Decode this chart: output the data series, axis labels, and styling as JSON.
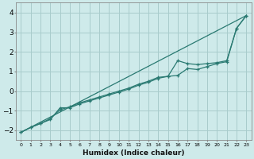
{
  "xlabel": "Humidex (Indice chaleur)",
  "xlim": [
    -0.5,
    23.5
  ],
  "ylim": [
    -2.5,
    4.5
  ],
  "yticks": [
    -2,
    -1,
    0,
    1,
    2,
    3,
    4
  ],
  "background_color": "#ceeaea",
  "grid_color": "#a8cccc",
  "line_color": "#2a7a72",
  "line1_x": [
    0,
    1,
    2,
    3,
    4,
    5,
    6,
    7,
    8,
    9,
    10,
    11,
    12,
    13,
    14,
    15,
    16,
    17,
    18,
    19,
    20,
    21,
    22,
    23
  ],
  "line1_y": [
    -2.1,
    -1.85,
    -1.65,
    -1.45,
    -0.85,
    -0.85,
    -0.65,
    -0.5,
    -0.35,
    -0.2,
    -0.05,
    0.1,
    0.3,
    0.45,
    0.65,
    0.75,
    0.8,
    1.15,
    1.1,
    1.25,
    1.4,
    1.5,
    3.2,
    3.85
  ],
  "line2_x": [
    0,
    1,
    2,
    3,
    4,
    5,
    6,
    7,
    8,
    9,
    10,
    11,
    12,
    13,
    14,
    15,
    16,
    17,
    18,
    19,
    20,
    21,
    22,
    23
  ],
  "line2_y": [
    -2.1,
    -1.85,
    -1.65,
    -1.4,
    -0.95,
    -0.8,
    -0.6,
    -0.45,
    -0.3,
    -0.15,
    0.0,
    0.15,
    0.35,
    0.5,
    0.7,
    0.75,
    1.55,
    1.4,
    1.35,
    1.4,
    1.45,
    1.55,
    3.2,
    3.85
  ],
  "line3_x": [
    0,
    23
  ],
  "line3_y": [
    -2.1,
    3.85
  ]
}
